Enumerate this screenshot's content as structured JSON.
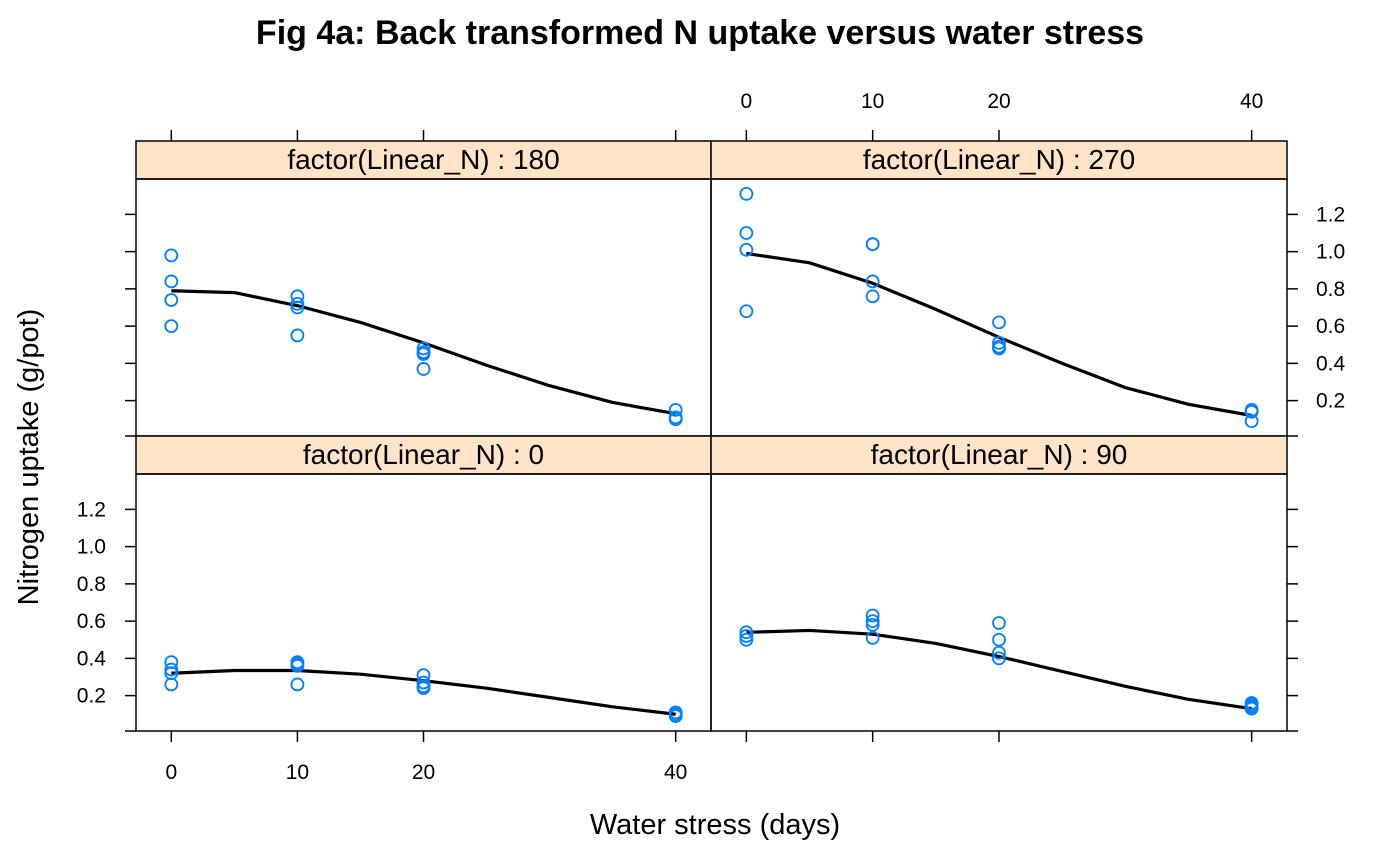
{
  "chart_data": {
    "type": "scatter",
    "title": "Fig 4a: Back transformed N uptake versus water stress",
    "xlabel": "Water stress (days)",
    "ylabel": "Nitrogen uptake (g/pot)",
    "x_ticks": [
      0,
      10,
      20,
      40
    ],
    "x_tick_labels": [
      "0",
      "10",
      "20",
      "40"
    ],
    "y_ticks": [
      0.2,
      0.4,
      0.6,
      0.8,
      1.0,
      1.2
    ],
    "y_tick_labels": [
      "0.2",
      "0.4",
      "0.6",
      "0.8",
      "1.0",
      "1.2"
    ],
    "xlim": [
      -2.8,
      42.8
    ],
    "ylim": [
      0.01,
      1.39
    ],
    "grid": false,
    "strip_color": "#ffe4c8",
    "point_color": "#0080ff",
    "line_color": "#000000",
    "panels": [
      {
        "label": "factor(Linear_N) : 180",
        "points": [
          {
            "x": 0,
            "y": 0.98
          },
          {
            "x": 0,
            "y": 0.84
          },
          {
            "x": 0,
            "y": 0.74
          },
          {
            "x": 0,
            "y": 0.6
          },
          {
            "x": 10,
            "y": 0.76
          },
          {
            "x": 10,
            "y": 0.72
          },
          {
            "x": 10,
            "y": 0.7
          },
          {
            "x": 10,
            "y": 0.55
          },
          {
            "x": 20,
            "y": 0.48
          },
          {
            "x": 20,
            "y": 0.46
          },
          {
            "x": 20,
            "y": 0.45
          },
          {
            "x": 20,
            "y": 0.37
          },
          {
            "x": 40,
            "y": 0.15
          },
          {
            "x": 40,
            "y": 0.11
          },
          {
            "x": 40,
            "y": 0.1
          }
        ],
        "curve": [
          {
            "x": 0,
            "y": 0.79
          },
          {
            "x": 5,
            "y": 0.78
          },
          {
            "x": 10,
            "y": 0.71
          },
          {
            "x": 15,
            "y": 0.62
          },
          {
            "x": 20,
            "y": 0.51
          },
          {
            "x": 25,
            "y": 0.39
          },
          {
            "x": 30,
            "y": 0.28
          },
          {
            "x": 35,
            "y": 0.19
          },
          {
            "x": 40,
            "y": 0.13
          }
        ]
      },
      {
        "label": "factor(Linear_N) : 270",
        "points": [
          {
            "x": 0,
            "y": 1.31
          },
          {
            "x": 0,
            "y": 1.1
          },
          {
            "x": 0,
            "y": 1.01
          },
          {
            "x": 0,
            "y": 0.68
          },
          {
            "x": 10,
            "y": 1.04
          },
          {
            "x": 10,
            "y": 1.04
          },
          {
            "x": 10,
            "y": 0.84
          },
          {
            "x": 10,
            "y": 0.76
          },
          {
            "x": 20,
            "y": 0.62
          },
          {
            "x": 20,
            "y": 0.51
          },
          {
            "x": 20,
            "y": 0.49
          },
          {
            "x": 20,
            "y": 0.48
          },
          {
            "x": 40,
            "y": 0.15
          },
          {
            "x": 40,
            "y": 0.14
          },
          {
            "x": 40,
            "y": 0.09
          }
        ],
        "curve": [
          {
            "x": 0,
            "y": 0.99
          },
          {
            "x": 5,
            "y": 0.94
          },
          {
            "x": 10,
            "y": 0.83
          },
          {
            "x": 15,
            "y": 0.69
          },
          {
            "x": 20,
            "y": 0.54
          },
          {
            "x": 25,
            "y": 0.4
          },
          {
            "x": 30,
            "y": 0.27
          },
          {
            "x": 35,
            "y": 0.18
          },
          {
            "x": 40,
            "y": 0.12
          }
        ]
      },
      {
        "label": "factor(Linear_N) : 0",
        "points": [
          {
            "x": 0,
            "y": 0.38
          },
          {
            "x": 0,
            "y": 0.34
          },
          {
            "x": 0,
            "y": 0.32
          },
          {
            "x": 0,
            "y": 0.26
          },
          {
            "x": 10,
            "y": 0.38
          },
          {
            "x": 10,
            "y": 0.37
          },
          {
            "x": 10,
            "y": 0.36
          },
          {
            "x": 10,
            "y": 0.26
          },
          {
            "x": 20,
            "y": 0.31
          },
          {
            "x": 20,
            "y": 0.27
          },
          {
            "x": 20,
            "y": 0.25
          },
          {
            "x": 20,
            "y": 0.24
          },
          {
            "x": 40,
            "y": 0.11
          },
          {
            "x": 40,
            "y": 0.1
          },
          {
            "x": 40,
            "y": 0.09
          }
        ],
        "curve": [
          {
            "x": 0,
            "y": 0.32
          },
          {
            "x": 5,
            "y": 0.335
          },
          {
            "x": 10,
            "y": 0.335
          },
          {
            "x": 15,
            "y": 0.315
          },
          {
            "x": 20,
            "y": 0.28
          },
          {
            "x": 25,
            "y": 0.24
          },
          {
            "x": 30,
            "y": 0.19
          },
          {
            "x": 35,
            "y": 0.14
          },
          {
            "x": 40,
            "y": 0.1
          }
        ]
      },
      {
        "label": "factor(Linear_N) : 90",
        "points": [
          {
            "x": 0,
            "y": 0.54
          },
          {
            "x": 0,
            "y": 0.52
          },
          {
            "x": 0,
            "y": 0.5
          },
          {
            "x": 10,
            "y": 0.63
          },
          {
            "x": 10,
            "y": 0.6
          },
          {
            "x": 10,
            "y": 0.58
          },
          {
            "x": 10,
            "y": 0.51
          },
          {
            "x": 20,
            "y": 0.59
          },
          {
            "x": 20,
            "y": 0.5
          },
          {
            "x": 20,
            "y": 0.43
          },
          {
            "x": 20,
            "y": 0.4
          },
          {
            "x": 40,
            "y": 0.16
          },
          {
            "x": 40,
            "y": 0.15
          },
          {
            "x": 40,
            "y": 0.14
          },
          {
            "x": 40,
            "y": 0.13
          }
        ],
        "curve": [
          {
            "x": 0,
            "y": 0.54
          },
          {
            "x": 5,
            "y": 0.55
          },
          {
            "x": 10,
            "y": 0.53
          },
          {
            "x": 15,
            "y": 0.48
          },
          {
            "x": 20,
            "y": 0.41
          },
          {
            "x": 25,
            "y": 0.33
          },
          {
            "x": 30,
            "y": 0.25
          },
          {
            "x": 35,
            "y": 0.18
          },
          {
            "x": 40,
            "y": 0.13
          }
        ]
      }
    ]
  }
}
